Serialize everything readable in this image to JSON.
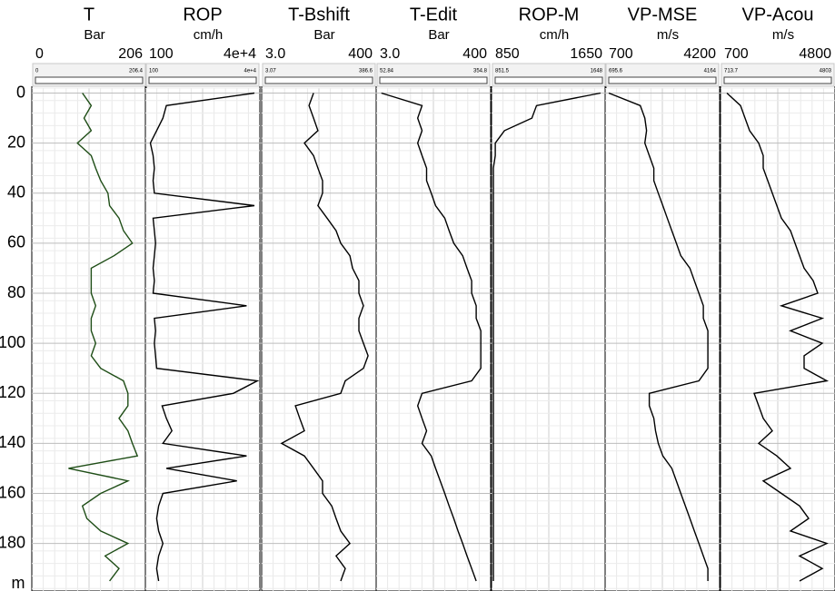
{
  "chart_data": {
    "type": "welllog",
    "y_label": "m",
    "ylim": [
      -2,
      199
    ],
    "yticks": [
      0,
      20,
      40,
      60,
      80,
      100,
      120,
      140,
      160,
      180
    ],
    "grid": true,
    "depth": [
      0,
      5,
      10,
      15,
      20,
      25,
      30,
      35,
      40,
      45,
      50,
      55,
      60,
      65,
      70,
      75,
      80,
      85,
      90,
      95,
      100,
      105,
      110,
      115,
      120,
      125,
      130,
      135,
      140,
      145,
      150,
      155,
      160,
      165,
      170,
      175,
      180,
      185,
      190,
      195
    ],
    "tracks": [
      {
        "name": "T",
        "unit": "Bar",
        "color": "#1e4d16",
        "xlim": [
          0,
          206
        ],
        "xticks": [
          0,
          206
        ],
        "range_labels": [
          0,
          206.4
        ],
        "values": [
          91,
          107,
          94,
          107,
          82,
          107,
          115,
          124,
          137,
          140,
          157,
          165,
          181,
          148,
          107,
          107,
          107,
          115,
          107,
          107,
          115,
          107,
          124,
          165,
          173,
          173,
          157,
          173,
          181,
          190,
          66,
          173,
          124,
          91,
          99,
          124,
          173,
          132,
          157,
          140
        ]
      },
      {
        "name": "ROP",
        "unit": "cm/h",
        "color": "#000000",
        "x_scale": "log",
        "xlim": [
          100,
          40000
        ],
        "xticks": [
          100,
          {
            "value": 40000,
            "label": "4e+4"
          }
        ],
        "range_labels": [
          100,
          {
            "value": 40000,
            "label": "4e+4"
          }
        ],
        "values": [
          30000,
          300,
          250,
          180,
          130,
          150,
          160,
          150,
          160,
          30000,
          150,
          160,
          170,
          160,
          150,
          160,
          150,
          20000,
          160,
          170,
          160,
          170,
          180,
          35000,
          10000,
          240,
          300,
          400,
          250,
          20000,
          300,
          12000,
          250,
          200,
          180,
          200,
          250,
          200,
          180,
          200
        ]
      },
      {
        "name": "T-Bshift",
        "unit": "Bar",
        "color": "#000000",
        "xlim": [
          3,
          400
        ],
        "xticks": [
          {
            "value": 3,
            "label": "3.0"
          },
          400
        ],
        "range_labels": [
          3.07,
          386.6
        ],
        "values": [
          183,
          167,
          183,
          198,
          151,
          183,
          198,
          214,
          214,
          198,
          230,
          261,
          277,
          309,
          318,
          340,
          340,
          356,
          340,
          340,
          356,
          372,
          356,
          293,
          277,
          120,
          135,
          151,
          72,
          151,
          183,
          214,
          214,
          246,
          261,
          277,
          309,
          261,
          293,
          277
        ]
      },
      {
        "name": "T-Edit",
        "unit": "Bar",
        "color": "#000000",
        "xlim": [
          3,
          400
        ],
        "xticks": [
          {
            "value": 3,
            "label": "3.0"
          },
          400
        ],
        "range_labels": [
          52.84,
          354.8
        ],
        "values": [
          21,
          162,
          147,
          162,
          147,
          162,
          178,
          178,
          194,
          209,
          241,
          256,
          272,
          303,
          318,
          334,
          334,
          350,
          350,
          366,
          366,
          366,
          366,
          334,
          162,
          147,
          162,
          178,
          162,
          194,
          209,
          225,
          241,
          256,
          272,
          287,
          303,
          318,
          334,
          350
        ]
      },
      {
        "name": "ROP-M",
        "unit": "cm/h",
        "color": "#000000",
        "xlim": [
          850,
          1650
        ],
        "xticks": [
          850,
          1650
        ],
        "range_labels": [
          851.5,
          1648
        ],
        "values": [
          1612,
          1164,
          1132,
          940,
          876,
          876,
          863,
          863,
          863,
          863,
          863,
          863,
          863,
          863,
          863,
          863,
          863,
          863,
          863,
          863,
          863,
          863,
          863,
          863,
          863,
          863,
          863,
          863,
          863,
          863,
          863,
          863,
          863,
          863,
          863,
          863,
          863,
          863,
          863,
          863
        ]
      },
      {
        "name": "VP-MSE",
        "unit": "m/s",
        "color": "#000000",
        "xlim": [
          700,
          4200
        ],
        "xticks": [
          700,
          4200
        ],
        "range_labels": [
          695.6,
          4164
        ],
        "values": [
          810,
          1775,
          1913,
          1968,
          1913,
          2050,
          2188,
          2188,
          2326,
          2464,
          2601,
          2739,
          2877,
          3015,
          3291,
          3428,
          3566,
          3704,
          3704,
          3842,
          3842,
          3842,
          3842,
          3566,
          2050,
          2050,
          2188,
          2243,
          2326,
          2464,
          2739,
          2877,
          3015,
          3153,
          3291,
          3428,
          3566,
          3704,
          3842,
          3842
        ]
      },
      {
        "name": "VP-Acou",
        "unit": "m/s",
        "color": "#000000",
        "xlim": [
          700,
          4800
        ],
        "xticks": [
          700,
          4800
        ],
        "range_labels": [
          713.7,
          4803
        ],
        "values": [
          928,
          1416,
          1579,
          1741,
          2067,
          2229,
          2229,
          2392,
          2555,
          2717,
          2880,
          3206,
          3368,
          3531,
          3694,
          4019,
          4182,
          2880,
          4344,
          3206,
          4344,
          3694,
          3694,
          4507,
          1904,
          2067,
          2229,
          2555,
          2067,
          2717,
          3206,
          2229,
          2880,
          3531,
          3856,
          3206,
          4507,
          3531,
          4344,
          3531
        ]
      }
    ]
  }
}
